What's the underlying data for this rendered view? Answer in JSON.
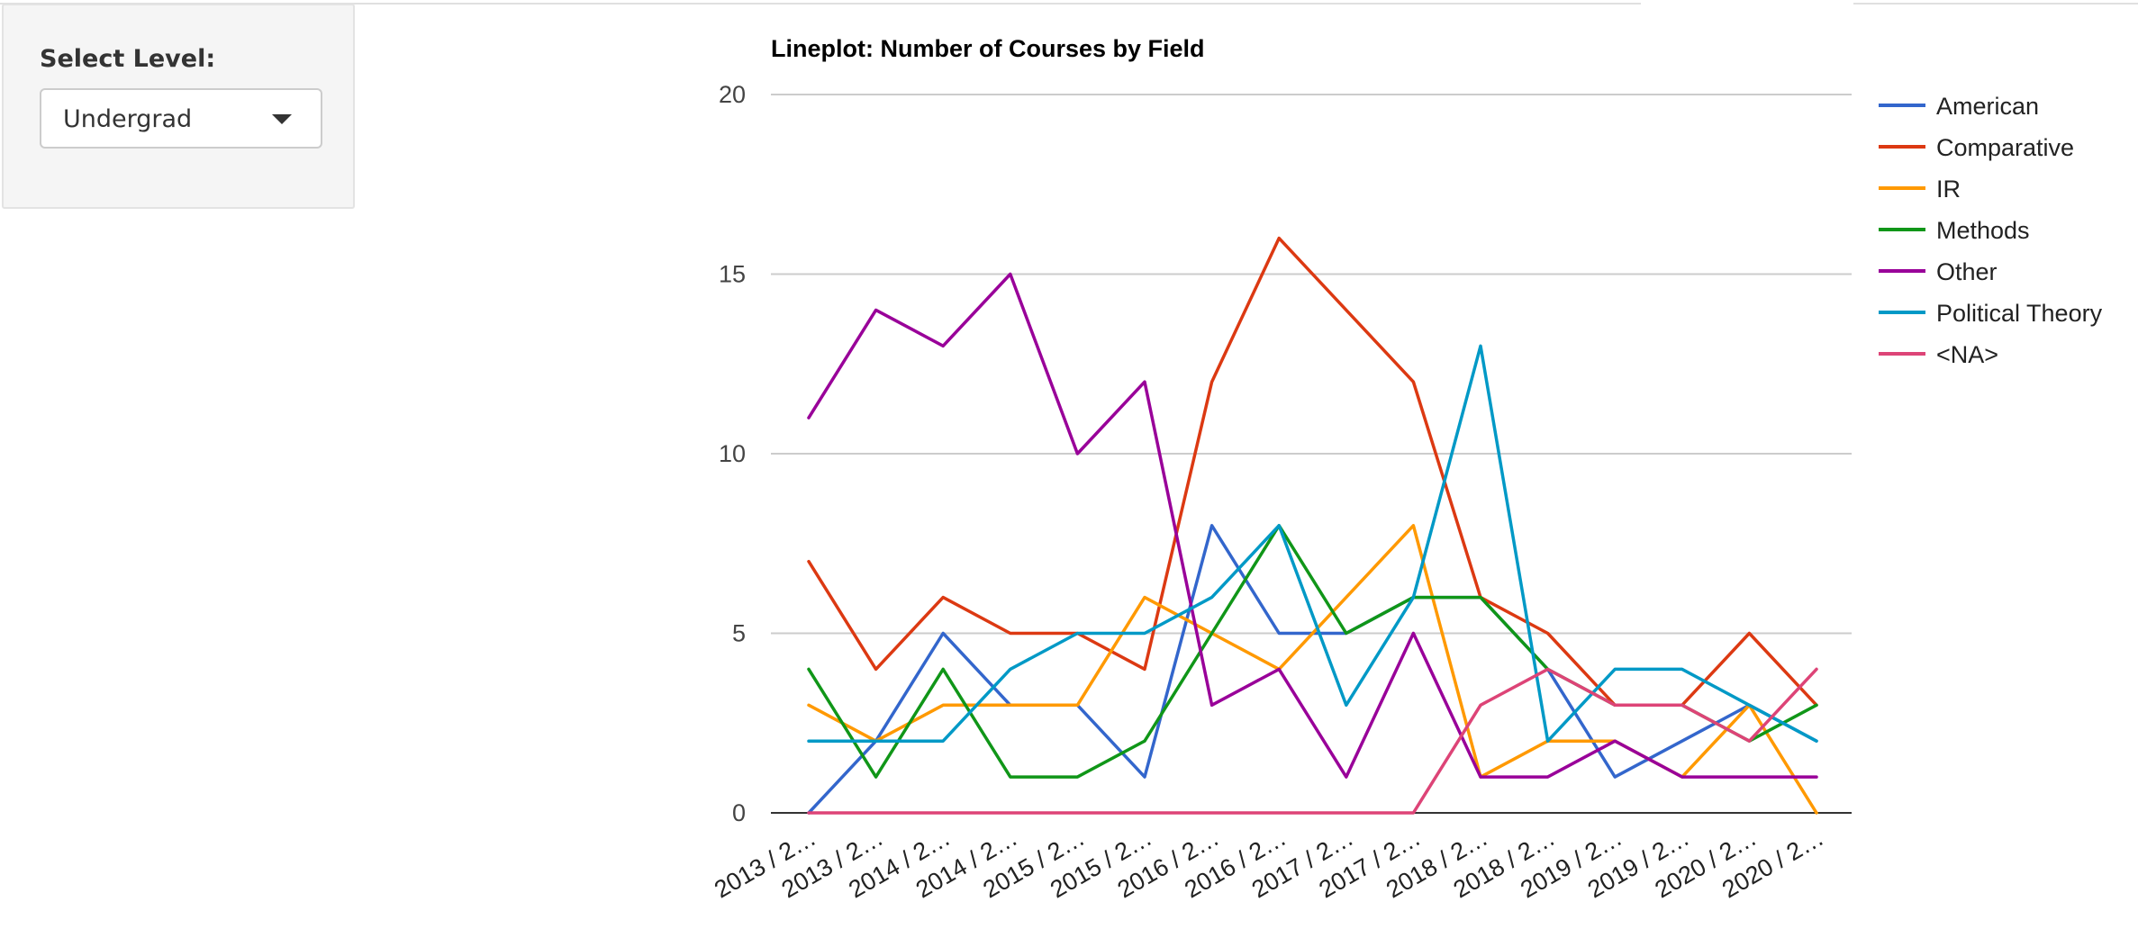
{
  "sidebar": {
    "select_label": "Select Level:",
    "selected_value": "Undergrad"
  },
  "chart_data": {
    "type": "line",
    "title": "Lineplot: Number of Courses by Field",
    "xlabel": "",
    "ylabel": "",
    "ylim": [
      0,
      20
    ],
    "yticks": [
      0,
      5,
      10,
      15,
      20
    ],
    "grid": true,
    "legend_position": "right",
    "categories": [
      "2013 / 2…",
      "2013 / 2…",
      "2014 / 2…",
      "2014 / 2…",
      "2015 / 2…",
      "2015 / 2…",
      "2016 / 2…",
      "2016 / 2…",
      "2017 / 2…",
      "2017 / 2…",
      "2018 / 2…",
      "2018 / 2…",
      "2019 / 2…",
      "2019 / 2…",
      "2020 / 2…",
      "2020 / 2…"
    ],
    "series": [
      {
        "name": "American",
        "color": "#3366cc",
        "values": [
          0,
          2,
          5,
          3,
          3,
          1,
          8,
          5,
          5,
          6,
          6,
          4,
          1,
          2,
          3,
          2
        ]
      },
      {
        "name": "Comparative",
        "color": "#dc3912",
        "values": [
          7,
          4,
          6,
          5,
          5,
          4,
          12,
          16,
          14,
          12,
          6,
          5,
          3,
          3,
          5,
          3
        ]
      },
      {
        "name": "IR",
        "color": "#ff9900",
        "values": [
          3,
          2,
          3,
          3,
          3,
          6,
          5,
          4,
          6,
          8,
          1,
          2,
          2,
          1,
          3,
          0
        ]
      },
      {
        "name": "Methods",
        "color": "#109618",
        "values": [
          4,
          1,
          4,
          1,
          1,
          2,
          5,
          8,
          5,
          6,
          6,
          4,
          3,
          3,
          2,
          3
        ]
      },
      {
        "name": "Other",
        "color": "#990099",
        "values": [
          11,
          14,
          13,
          15,
          10,
          12,
          3,
          4,
          1,
          5,
          1,
          1,
          2,
          1,
          1,
          1
        ]
      },
      {
        "name": "Political Theory",
        "color": "#0099c6",
        "values": [
          2,
          2,
          2,
          4,
          5,
          5,
          6,
          8,
          3,
          6,
          13,
          2,
          4,
          4,
          3,
          2
        ]
      },
      {
        "name": "<NA>",
        "color": "#dd4477",
        "values": [
          0,
          0,
          0,
          0,
          0,
          0,
          0,
          0,
          0,
          0,
          3,
          4,
          3,
          3,
          2,
          4
        ]
      }
    ]
  }
}
